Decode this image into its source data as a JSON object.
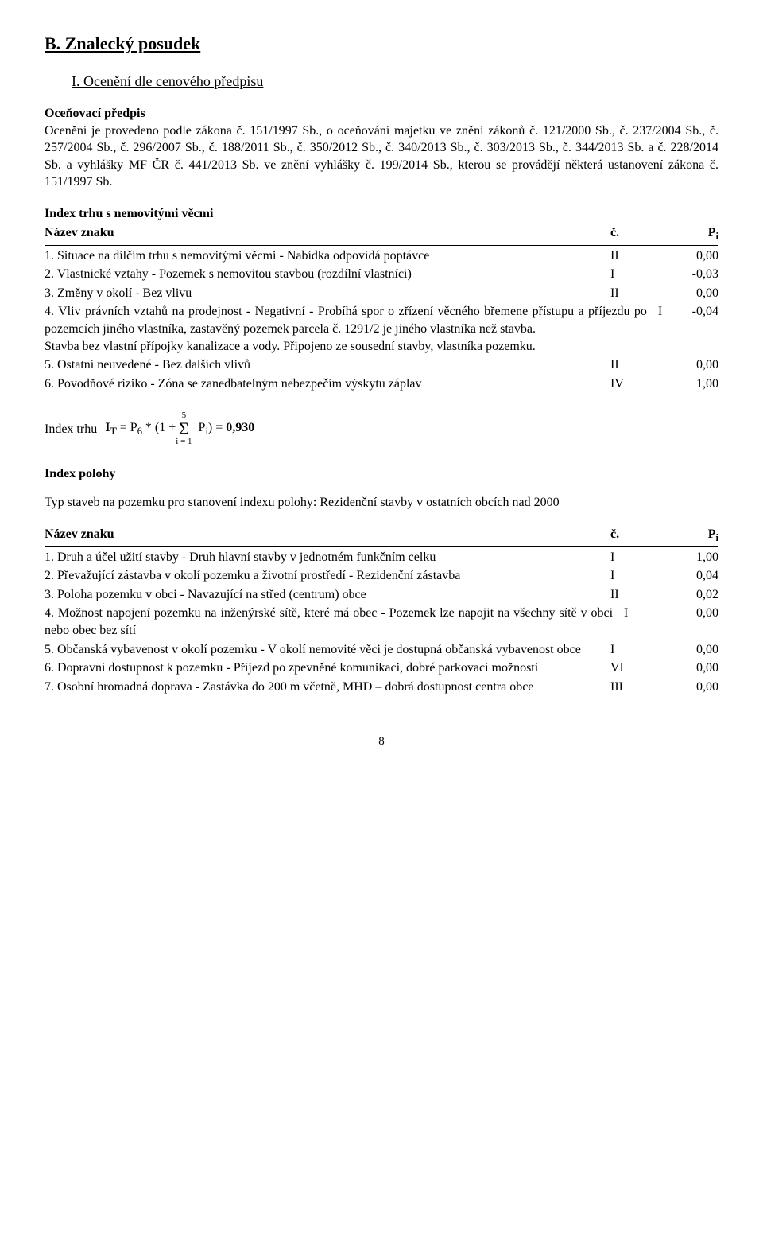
{
  "headings": {
    "h1": "B. Znalecký posudek",
    "h2": "I. Ocenění dle cenového předpisu"
  },
  "predpis": {
    "label": "Oceňovací předpis",
    "text": "Ocenění je provedeno podle zákona č. 151/1997 Sb., o oceňování majetku ve znění zákonů č. 121/2000 Sb., č. 237/2004 Sb., č. 257/2004 Sb., č. 296/2007 Sb., č. 188/2011 Sb., č. 350/2012 Sb., č. 340/2013 Sb., č. 303/2013 Sb., č. 344/2013 Sb. a č. 228/2014 Sb. a vyhlášky MF ČR č. 441/2013 Sb. ve znění vyhlášky č. 199/2014 Sb., kterou se provádějí některá ustanovení zákona č. 151/1997 Sb."
  },
  "tableHeader": {
    "name": "Název znaku",
    "c": "č.",
    "p_prefix": "P",
    "p_sub": "i"
  },
  "indexTrhu": {
    "title": "Index trhu s nemovitými věcmi",
    "items": [
      {
        "text": "1. Situace na dílčím trhu s nemovitými věcmi - Nabídka odpovídá poptávce",
        "c": "II",
        "p": "0,00"
      },
      {
        "text": "2. Vlastnické vztahy - Pozemek s nemovitou stavbou (rozdílní vlastníci)",
        "c": "I",
        "p": "-0,03"
      },
      {
        "text": "3. Změny v okolí - Bez vlivu",
        "c": "II",
        "p": "0,00"
      },
      {
        "text": "4. Vliv právních vztahů na prodejnost - Negativní - Probíhá spor o zřízení věcného břemene přístupu a příjezdu po pozemcích jiného vlastníka, zastavěný pozemek parcela č. 1291/2 je jiného vlastníka než stavba.\nStavba bez vlastní přípojky kanalizace a vody. Připojeno ze sousední stavby, vlastníka pozemku.",
        "c": "I",
        "p": "-0,04"
      },
      {
        "text": "5. Ostatní neuvedené - Bez dalších vlivů",
        "c": "II",
        "p": "0,00"
      },
      {
        "text": "6. Povodňové riziko - Zóna se zanedbatelným nebezpečím výskytu záplav",
        "c": "IV",
        "p": "1,00"
      }
    ]
  },
  "formula": {
    "lhs_label": "Index trhu",
    "eq_prefix": "I",
    "eq_sub1": "T",
    "eq_mid": " = P",
    "eq_sub2": "6",
    "eq_after": " * (1 + ",
    "sum_top": "5",
    "sum_sigma": "Σ",
    "sum_bot": "i = 1",
    "eq_rhs_pref": " P",
    "eq_rhs_sub": "i",
    "eq_rhs_after": ") = ",
    "result": "0,930"
  },
  "indexPolohy": {
    "heading": "Index polohy",
    "intro": "Typ staveb na pozemku pro stanovení indexu polohy: Rezidenční stavby v ostatních obcích nad 2000",
    "items": [
      {
        "text": "1. Druh a účel užití stavby - Druh hlavní stavby v jednotném funkčním celku",
        "c": "I",
        "p": "1,00"
      },
      {
        "text": "2. Převažující zástavba v okolí pozemku a životní prostředí - Rezidenční zástavba",
        "c": "I",
        "p": "0,04"
      },
      {
        "text": "3. Poloha pozemku v obci - Navazující na střed (centrum) obce",
        "c": "II",
        "p": "0,02"
      },
      {
        "text": "4. Možnost napojení pozemku na inženýrské sítě, které má obec - Pozemek lze napojit na všechny sítě v obci nebo obec bez sítí",
        "c": "I",
        "p": "0,00"
      },
      {
        "text": "5. Občanská vybavenost v okolí pozemku - V okolí nemovité věci je dostupná občanská vybavenost obce",
        "c": "I",
        "p": "0,00"
      },
      {
        "text": "6. Dopravní dostupnost k pozemku - Příjezd po zpevněné komunikaci, dobré parkovací možnosti",
        "c": "VI",
        "p": "0,00"
      },
      {
        "text": "7. Osobní hromadná doprava - Zastávka do 200 m včetně, MHD – dobrá dostupnost centra obce",
        "c": "III",
        "p": "0,00"
      }
    ]
  },
  "pageNumber": "8"
}
